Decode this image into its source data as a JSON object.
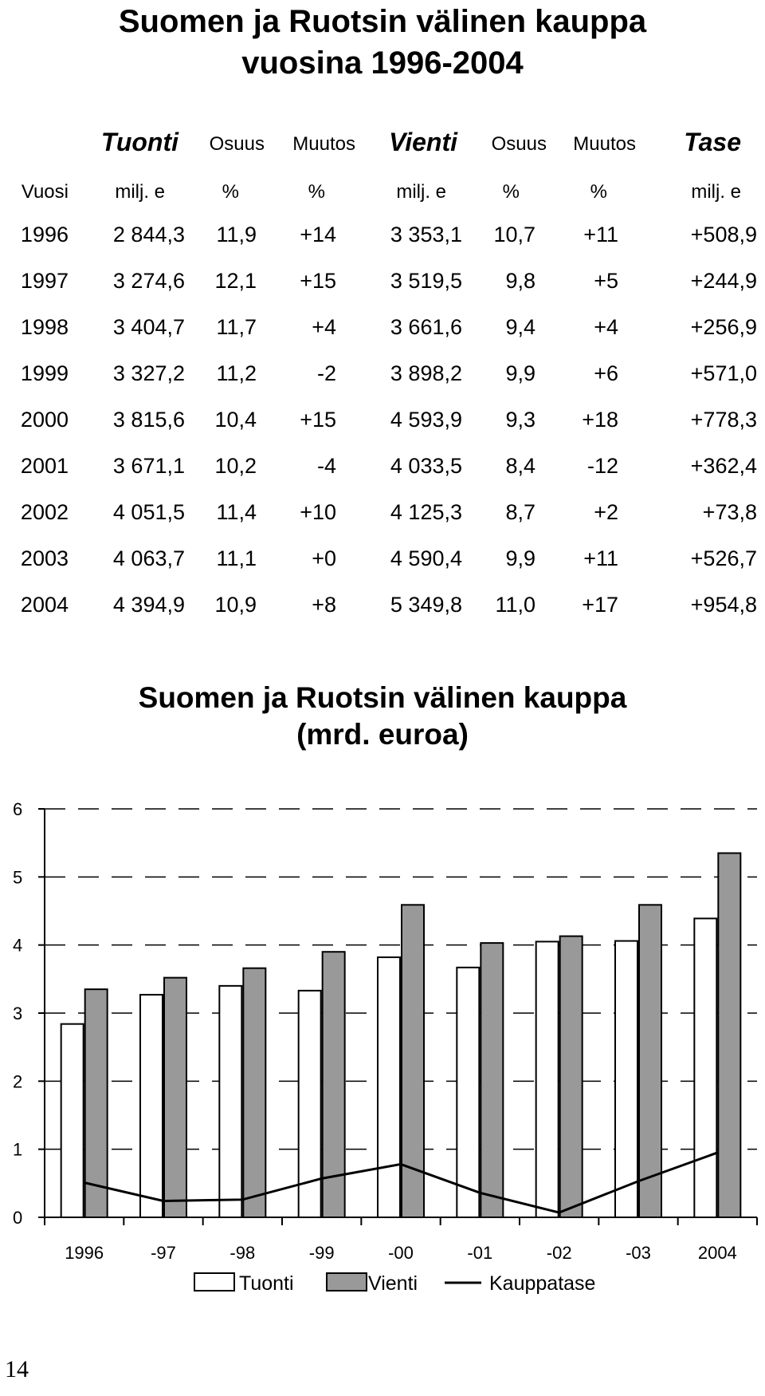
{
  "table": {
    "title_line1": "Suomen ja Ruotsin välinen kauppa",
    "title_line2": "vuosina 1996-2004",
    "group_headers": [
      "Tuonti",
      "Osuus",
      "Muutos",
      "Vienti",
      "Osuus",
      "Muutos",
      "Tase"
    ],
    "unit_headers": [
      "Vuosi",
      "milj. e",
      "%",
      "%",
      "milj. e",
      "%",
      "%",
      "milj. e"
    ],
    "rows": [
      [
        "1996",
        "2 844,3",
        "11,9",
        "+14",
        "3 353,1",
        "10,7",
        "+11",
        "+508,9"
      ],
      [
        "1997",
        "3 274,6",
        "12,1",
        "+15",
        "3 519,5",
        "9,8",
        "+5",
        "+244,9"
      ],
      [
        "1998",
        "3 404,7",
        "11,7",
        "+4",
        "3 661,6",
        "9,4",
        "+4",
        "+256,9"
      ],
      [
        "1999",
        "3 327,2",
        "11,2",
        "-2",
        "3 898,2",
        "9,9",
        "+6",
        "+571,0"
      ],
      [
        "2000",
        "3 815,6",
        "10,4",
        "+15",
        "4 593,9",
        "9,3",
        "+18",
        "+778,3"
      ],
      [
        "2001",
        "3 671,1",
        "10,2",
        "-4",
        "4 033,5",
        "8,4",
        "-12",
        "+362,4"
      ],
      [
        "2002",
        "4 051,5",
        "11,4",
        "+10",
        "4 125,3",
        "8,7",
        "+2",
        "+73,8"
      ],
      [
        "2003",
        "4 063,7",
        "11,1",
        "+0",
        "4 590,4",
        "9,9",
        "+11",
        "+526,7"
      ],
      [
        "2004",
        "4 394,9",
        "10,9",
        "+8",
        "5 349,8",
        "11,0",
        "+17",
        "+954,8"
      ]
    ]
  },
  "chart_data": {
    "type": "bar",
    "title_line1": "Suomen ja Ruotsin välinen kauppa",
    "title_line2": "(mrd. euroa)",
    "categories": [
      "1996",
      "-97",
      "-98",
      "-99",
      "-00",
      "-01",
      "-02",
      "-03",
      "2004"
    ],
    "series": [
      {
        "name": "Tuonti",
        "kind": "bar",
        "color": "#ffffff",
        "values": [
          2.84,
          3.27,
          3.4,
          3.33,
          3.82,
          3.67,
          4.05,
          4.06,
          4.39
        ]
      },
      {
        "name": "Vienti",
        "kind": "bar",
        "color": "#999999",
        "values": [
          3.35,
          3.52,
          3.66,
          3.9,
          4.59,
          4.03,
          4.13,
          4.59,
          5.35
        ]
      },
      {
        "name": "Kauppatase",
        "kind": "line",
        "color": "#000000",
        "values": [
          0.51,
          0.24,
          0.26,
          0.57,
          0.78,
          0.36,
          0.07,
          0.53,
          0.95
        ]
      }
    ],
    "yticks": [
      "0",
      "1",
      "2",
      "3",
      "4",
      "5",
      "6"
    ],
    "ylim": [
      0,
      6
    ],
    "grid": "dashed horizontal",
    "legend_position": "bottom"
  },
  "footer": {
    "page_number": "14"
  }
}
